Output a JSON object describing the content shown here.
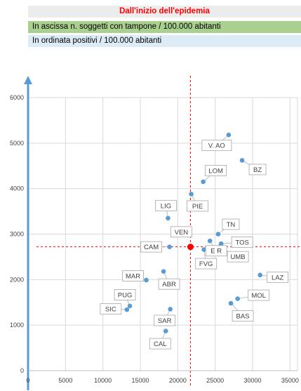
{
  "header": {
    "title": "Dall'inizio dell'epidemia",
    "x_description": "In ascissa n. soggetti con tampone / 100.000 abitanti",
    "y_description": "In ordinata positivi / 100.000 abitanti"
  },
  "chart_data": {
    "type": "scatter",
    "xlim": [
      0,
      36000
    ],
    "ylim": [
      0,
      6000
    ],
    "x_ticks": [
      "0",
      "5000",
      "10000",
      "15000",
      "20000",
      "25000",
      "30000",
      "35000"
    ],
    "y_ticks": [
      "0",
      "1000",
      "2000",
      "3000",
      "4000",
      "5000",
      "6000"
    ],
    "grid": true,
    "points": [
      {
        "label": "V. AO",
        "x": 26800,
        "y": 5180
      },
      {
        "label": "BZ",
        "x": 28600,
        "y": 4620
      },
      {
        "label": "LOM",
        "x": 23400,
        "y": 4150
      },
      {
        "label": "PIE",
        "x": 21800,
        "y": 3880
      },
      {
        "label": "LIG",
        "x": 18700,
        "y": 3350
      },
      {
        "label": "VEN",
        "x": 21600,
        "y": 3080
      },
      {
        "label": "TN",
        "x": 25400,
        "y": 3000
      },
      {
        "label": "TOS",
        "x": 25800,
        "y": 2790
      },
      {
        "label": "CAM",
        "x": 18900,
        "y": 2720
      },
      {
        "label": "FVG",
        "x": 23500,
        "y": 2660
      },
      {
        "label": "E R",
        "x": 24300,
        "y": 2850
      },
      {
        "label": "UMB",
        "x": 25600,
        "y": 2720
      },
      {
        "label": "MAR",
        "x": 15800,
        "y": 1990
      },
      {
        "label": "ABR",
        "x": 18100,
        "y": 2180
      },
      {
        "label": "LAZ",
        "x": 31000,
        "y": 2100
      },
      {
        "label": "PUG",
        "x": 13600,
        "y": 1420
      },
      {
        "label": "SIC",
        "x": 13200,
        "y": 1340
      },
      {
        "label": "MOL",
        "x": 28000,
        "y": 1580
      },
      {
        "label": "BAS",
        "x": 27100,
        "y": 1480
      },
      {
        "label": "SAR",
        "x": 19000,
        "y": 1350
      },
      {
        "label": "CAL",
        "x": 18400,
        "y": 870
      }
    ],
    "average_point": {
      "x": 21700,
      "y": 2720
    },
    "colors": {
      "point": "#5b9bd5",
      "average_point": "#ff0000",
      "reference_lines": "#ff0000",
      "y_axis_arrow": "#5b9bd5",
      "grid": "#d9d9d9",
      "label_border": "#a6a6a6"
    }
  }
}
